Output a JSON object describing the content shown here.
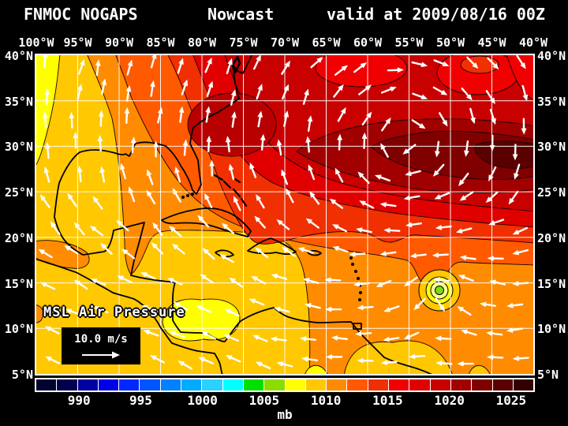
{
  "title": {
    "left": "FNMOC NOGAPS",
    "center": "Nowcast",
    "right": "valid at 2009/08/16 00Z"
  },
  "axes": {
    "lon_labels": [
      "100°W",
      "95°W",
      "90°W",
      "85°W",
      "80°W",
      "75°W",
      "70°W",
      "65°W",
      "60°W",
      "55°W",
      "50°W",
      "45°W",
      "40°W"
    ],
    "lat_labels": [
      "40°N",
      "35°N",
      "30°N",
      "25°N",
      "20°N",
      "15°N",
      "10°N",
      "5°N"
    ]
  },
  "overlay": {
    "field_label": "MSL Air Pressure",
    "wind_scale_label": "10.0 m/s"
  },
  "colorbar": {
    "unit": "mb",
    "tick_labels": [
      "990",
      "995",
      "1000",
      "1005",
      "1010",
      "1015",
      "1020",
      "1025"
    ],
    "colors": [
      "#020230",
      "#00004F",
      "#0000A0",
      "#0000E8",
      "#0028FF",
      "#0055FF",
      "#0081FF",
      "#00AAFF",
      "#2BD2FF",
      "#00FFFF",
      "#00E000",
      "#8CDC00",
      "#FFFF00",
      "#FFC800",
      "#FF8C00",
      "#FF5A00",
      "#F03000",
      "#F00000",
      "#E00000",
      "#C80000",
      "#A00000",
      "#800000",
      "#5A0000",
      "#320000"
    ]
  },
  "colors": {
    "background": "#000000",
    "text": "#FFFFFF",
    "grid": "#FFFFFF",
    "coastline": "#000000",
    "wind_arrows": "#FFFFFF",
    "cyclone_center": "#7CDC14"
  }
}
